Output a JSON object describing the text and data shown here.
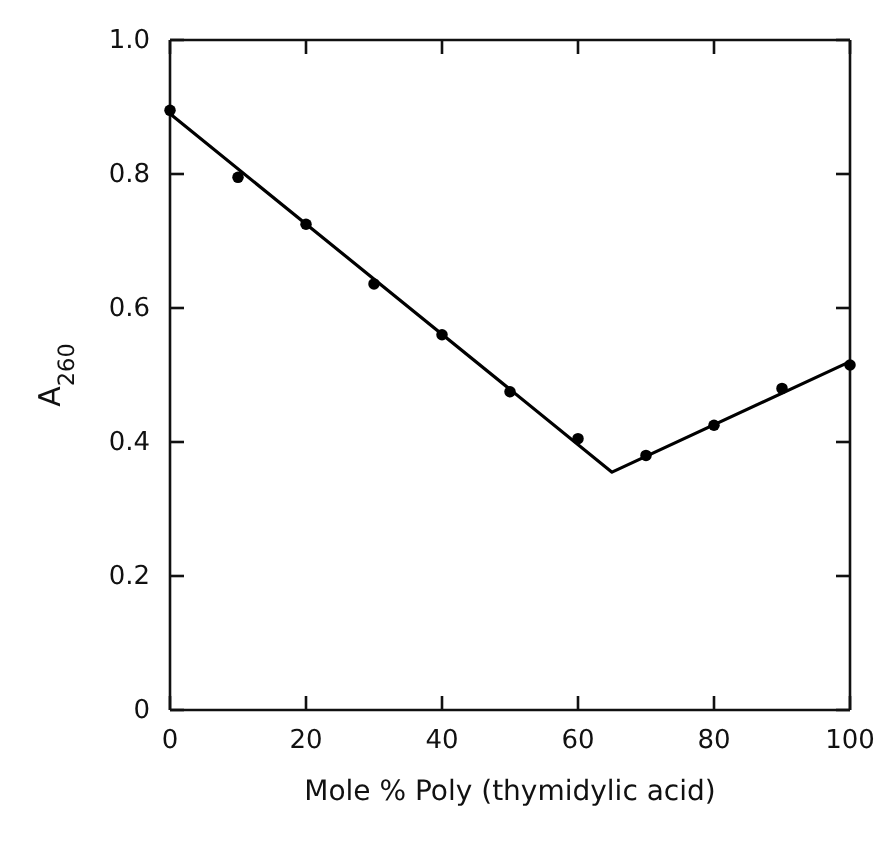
{
  "chart_data": {
    "type": "scatter",
    "xlabel": "Mole % Poly (thymidylic acid)",
    "ylabel": "A$_{260}$",
    "xlim": [
      0,
      100
    ],
    "ylim": [
      0,
      1
    ],
    "xticks": [
      0,
      20,
      40,
      60,
      80,
      100
    ],
    "yticks": [
      0,
      0.2,
      0.4,
      0.6,
      0.8,
      {
        "value": 1,
        "label": "1.0"
      }
    ],
    "grid": false,
    "series": [
      {
        "marker": "circle",
        "color": "#000000",
        "x": [
          0,
          10,
          20,
          30,
          40,
          50,
          60,
          70,
          80,
          90,
          100
        ],
        "values": [
          0.895,
          0.795,
          0.725,
          0.636,
          0.56,
          0.475,
          0.405,
          0.38,
          0.425,
          0.48,
          0.515
        ]
      },
      {
        "type": "line",
        "marker": "none",
        "color": "#000000",
        "x": [
          0,
          65,
          100
        ],
        "values": [
          0.89,
          0.355,
          0.52
        ]
      }
    ]
  }
}
